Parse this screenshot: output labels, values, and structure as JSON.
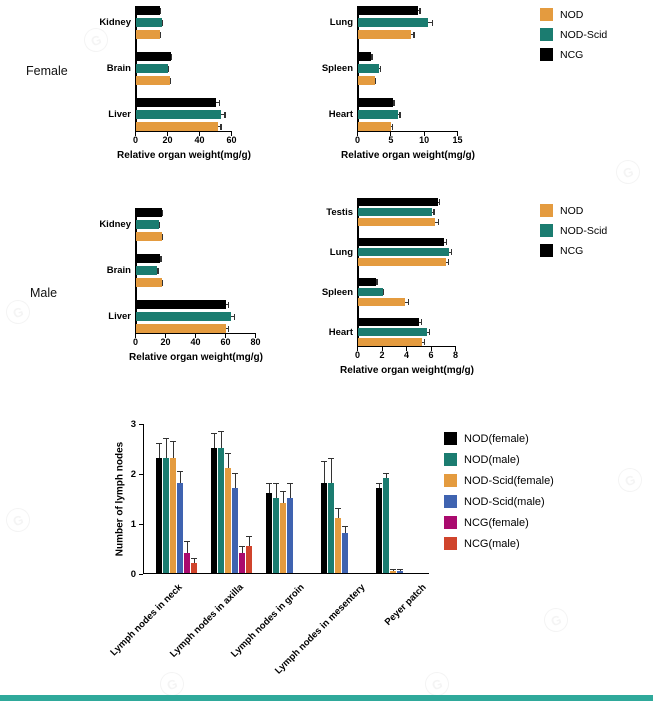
{
  "page": {
    "female_label": "Female",
    "male_label": "Male",
    "watermark_glyph": "G"
  },
  "legends": {
    "female": {
      "items": [
        {
          "label": "NOD",
          "color": "#E49B3F"
        },
        {
          "label": "NOD-Scid",
          "color": "#1B7C70"
        },
        {
          "label": "NCG",
          "color": "#000000"
        }
      ]
    },
    "male": {
      "items": [
        {
          "label": "NOD",
          "color": "#E49B3F"
        },
        {
          "label": "NOD-Scid",
          "color": "#1B7C70"
        },
        {
          "label": "NCG",
          "color": "#000000"
        }
      ]
    },
    "lymph": {
      "items": [
        {
          "label": "NOD(female)",
          "color": "#000000"
        },
        {
          "label": "NOD(male)",
          "color": "#1B7C70"
        },
        {
          "label": "NOD-Scid(female)",
          "color": "#E49B3F"
        },
        {
          "label": "NOD-Scid(male)",
          "color": "#3F63B0"
        },
        {
          "label": "NCG(female)",
          "color": "#AA0A6E"
        },
        {
          "label": "NCG(male)",
          "color": "#D0442C"
        }
      ]
    }
  },
  "chart_data": [
    {
      "panel": "female-organs-left",
      "type": "bar",
      "orientation": "horizontal",
      "categories": [
        "Kidney",
        "Brain",
        "Liver"
      ],
      "series": [
        {
          "name": "NCG",
          "color": "#000000",
          "values": [
            15,
            22,
            50
          ],
          "errors": [
            0.8,
            0.8,
            2.5
          ]
        },
        {
          "name": "NOD-Scid",
          "color": "#1B7C70",
          "values": [
            16,
            20,
            53
          ],
          "errors": [
            0.8,
            0.8,
            3
          ]
        },
        {
          "name": "NOD",
          "color": "#E49B3F",
          "values": [
            15,
            21,
            51
          ],
          "errors": [
            0.8,
            0.8,
            2.5
          ]
        }
      ],
      "xlabel": "Relative organ weight(mg/g)",
      "xlim": [
        0,
        60
      ],
      "xticks": [
        0,
        20,
        40,
        60
      ]
    },
    {
      "panel": "female-organs-right",
      "type": "bar",
      "orientation": "horizontal",
      "categories": [
        "Lung",
        "Spleen",
        "Heart"
      ],
      "series": [
        {
          "name": "NCG",
          "color": "#000000",
          "values": [
            9,
            2,
            5.2
          ],
          "errors": [
            0.4,
            0.2,
            0.3
          ]
        },
        {
          "name": "NOD-Scid",
          "color": "#1B7C70",
          "values": [
            10.5,
            3.2,
            6
          ],
          "errors": [
            0.8,
            0.3,
            0.4
          ]
        },
        {
          "name": "NOD",
          "color": "#E49B3F",
          "values": [
            8,
            2.5,
            5
          ],
          "errors": [
            0.5,
            0.2,
            0.3
          ]
        }
      ],
      "xlabel": "Relative organ weight(mg/g)",
      "xlim": [
        0,
        15
      ],
      "xticks": [
        0,
        5,
        10,
        15
      ]
    },
    {
      "panel": "male-organs-left",
      "type": "bar",
      "orientation": "horizontal",
      "categories": [
        "Kidney",
        "Brain",
        "Liver"
      ],
      "series": [
        {
          "name": "NCG",
          "color": "#000000",
          "values": [
            17,
            16,
            60
          ],
          "errors": [
            1,
            1,
            2
          ]
        },
        {
          "name": "NOD-Scid",
          "color": "#1B7C70",
          "values": [
            15,
            14,
            63
          ],
          "errors": [
            1,
            1,
            3
          ]
        },
        {
          "name": "NOD",
          "color": "#E49B3F",
          "values": [
            17,
            17,
            60
          ],
          "errors": [
            1,
            1,
            2
          ]
        }
      ],
      "xlabel": "Relative organ weight(mg/g)",
      "xlim": [
        0,
        80
      ],
      "xticks": [
        0,
        20,
        40,
        60,
        80
      ]
    },
    {
      "panel": "male-organs-right",
      "type": "bar",
      "orientation": "horizontal",
      "categories": [
        "Testis",
        "Lung",
        "Spleen",
        "Heart"
      ],
      "series": [
        {
          "name": "NCG",
          "color": "#000000",
          "values": [
            6.5,
            7,
            1.5,
            5
          ],
          "errors": [
            0.2,
            0.25,
            0.1,
            0.2
          ]
        },
        {
          "name": "NOD-Scid",
          "color": "#1B7C70",
          "values": [
            6,
            7.4,
            2,
            5.6
          ],
          "errors": [
            0.25,
            0.3,
            0.15,
            0.3
          ]
        },
        {
          "name": "NOD",
          "color": "#E49B3F",
          "values": [
            6.3,
            7.2,
            3.8,
            5.2
          ],
          "errors": [
            0.3,
            0.25,
            0.4,
            0.3
          ]
        }
      ],
      "xlabel": "Relative organ weight(mg/g)",
      "xlim": [
        0,
        8
      ],
      "xticks": [
        0,
        2,
        4,
        6,
        8
      ]
    },
    {
      "panel": "lymph-nodes",
      "type": "bar",
      "orientation": "vertical",
      "ylabel": "Number of lymph nodes",
      "ylim": [
        0,
        3
      ],
      "yticks": [
        0,
        1,
        2,
        3
      ],
      "categories": [
        "Lymph nodes in neck",
        "Lymph nodes in axilla",
        "Lymph nodes in groin",
        "Lymph nodes in mesentery",
        "Peyer patch"
      ],
      "series": [
        {
          "name": "NOD(female)",
          "color": "#000000",
          "values": [
            2.3,
            2.5,
            1.6,
            1.8,
            1.7
          ],
          "errors": [
            0.3,
            0.3,
            0.2,
            0.45,
            0.1
          ]
        },
        {
          "name": "NOD(male)",
          "color": "#1B7C70",
          "values": [
            2.3,
            2.5,
            1.5,
            1.8,
            1.9
          ],
          "errors": [
            0.4,
            0.35,
            0.3,
            0.5,
            0.1
          ]
        },
        {
          "name": "NOD-Scid(female)",
          "color": "#E49B3F",
          "values": [
            2.3,
            2.1,
            1.4,
            1.1,
            0.05
          ],
          "errors": [
            0.35,
            0.3,
            0.25,
            0.2,
            0.03
          ]
        },
        {
          "name": "NOD-Scid(male)",
          "color": "#3F63B0",
          "values": [
            1.8,
            1.7,
            1.5,
            0.8,
            0.05
          ],
          "errors": [
            0.25,
            0.3,
            0.3,
            0.15,
            0.03
          ]
        },
        {
          "name": "NCG(female)",
          "color": "#AA0A6E",
          "values": [
            0.4,
            0.4,
            0,
            0,
            0
          ],
          "errors": [
            0.25,
            0.15,
            0,
            0,
            0
          ]
        },
        {
          "name": "NCG(male)",
          "color": "#D0442C",
          "values": [
            0.2,
            0.55,
            0,
            0,
            0
          ],
          "errors": [
            0.1,
            0.2,
            0,
            0,
            0
          ]
        }
      ]
    }
  ]
}
